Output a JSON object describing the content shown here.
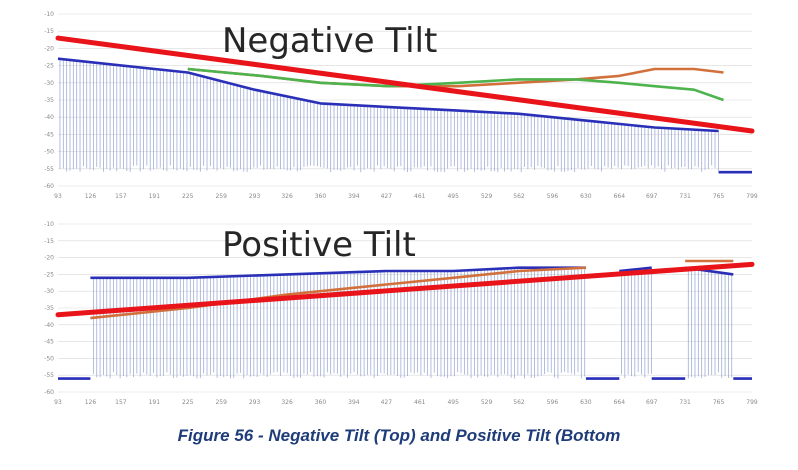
{
  "figure": {
    "caption": "Figure 56 - Negative Tilt (Top) and Positive Tilt (Bottom"
  },
  "colors": {
    "blue": "#2a2fb8",
    "orange": "#d2703c",
    "green": "#4db34d",
    "red": "#e8141a",
    "grid": "#d9d9d9",
    "spike": "#8f9fcf"
  },
  "chart_data": [
    {
      "type": "line",
      "title": "Negative Tilt",
      "x_ticks": [
        "93",
        "126",
        "157",
        "191",
        "225",
        "259",
        "293",
        "326",
        "360",
        "394",
        "427",
        "461",
        "495",
        "529",
        "562",
        "596",
        "630",
        "664",
        "697",
        "731",
        "765",
        "799"
      ],
      "y_ticks": [
        "-10",
        "-15",
        "-20",
        "-25",
        "-30",
        "-35",
        "-40",
        "-45",
        "-50",
        "-55",
        "-60"
      ],
      "xlim": [
        93,
        799
      ],
      "ylim": [
        -60,
        -10
      ],
      "grid": true,
      "trend_line": {
        "color": "red",
        "x": [
          93,
          799
        ],
        "y": [
          -17,
          -44
        ]
      },
      "series": [
        {
          "color": "orange",
          "x": [
            225,
            300,
            360,
            430,
            500,
            560,
            620,
            664,
            700,
            740,
            770
          ],
          "y": [
            -26,
            -28,
            -30,
            -31,
            -31,
            -30,
            -29,
            -28,
            -26,
            -26,
            -27
          ]
        },
        {
          "color": "green",
          "x": [
            225,
            300,
            360,
            430,
            500,
            560,
            620,
            664,
            700,
            740,
            770
          ],
          "y": [
            -26,
            -28,
            -30,
            -31,
            -30,
            -29,
            -29,
            -30,
            -31,
            -32,
            -35
          ]
        },
        {
          "color": "blue",
          "x": [
            93,
            225,
            293,
            360,
            427,
            495,
            562,
            630,
            700,
            765
          ],
          "y": [
            -23,
            -27,
            -32,
            -36,
            -37,
            -38,
            -39,
            -41,
            -43,
            -44
          ]
        },
        {
          "color": "blue",
          "x": [
            765,
            799
          ],
          "y": [
            -56,
            -56
          ]
        }
      ]
    },
    {
      "type": "line",
      "title": "Positive Tilt",
      "x_ticks": [
        "93",
        "126",
        "157",
        "191",
        "225",
        "259",
        "293",
        "326",
        "360",
        "394",
        "427",
        "461",
        "495",
        "529",
        "562",
        "596",
        "630",
        "664",
        "697",
        "731",
        "765",
        "799"
      ],
      "y_ticks": [
        "-10",
        "-15",
        "-20",
        "-25",
        "-30",
        "-35",
        "-40",
        "-45",
        "-50",
        "-55",
        "-60"
      ],
      "xlim": [
        93,
        799
      ],
      "ylim": [
        -60,
        -10
      ],
      "grid": true,
      "trend_line": {
        "color": "red",
        "x": [
          93,
          799
        ],
        "y": [
          -37,
          -22
        ]
      },
      "series": [
        {
          "color": "blue",
          "x": [
            93,
            126
          ],
          "y": [
            -56,
            -56
          ]
        },
        {
          "color": "blue",
          "x": [
            126,
            225,
            326,
            427,
            495,
            562,
            630
          ],
          "y": [
            -26,
            -26,
            -25,
            -24,
            -24,
            -23,
            -23
          ]
        },
        {
          "color": "orange",
          "x": [
            126,
            225,
            326,
            427,
            495,
            562,
            630
          ],
          "y": [
            -38,
            -35,
            -31,
            -28,
            -26,
            -24,
            -23
          ]
        },
        {
          "color": "blue",
          "x": [
            630,
            664
          ],
          "y": [
            -56,
            -56
          ]
        },
        {
          "color": "blue",
          "x": [
            664,
            697
          ],
          "y": [
            -24,
            -23
          ]
        },
        {
          "color": "blue",
          "x": [
            697,
            731
          ],
          "y": [
            -56,
            -56
          ]
        },
        {
          "color": "blue",
          "x": [
            731,
            780
          ],
          "y": [
            -23,
            -25
          ]
        },
        {
          "color": "orange",
          "x": [
            731,
            780
          ],
          "y": [
            -21,
            -21
          ]
        },
        {
          "color": "blue",
          "x": [
            780,
            799
          ],
          "y": [
            -56,
            -56
          ]
        }
      ]
    }
  ]
}
